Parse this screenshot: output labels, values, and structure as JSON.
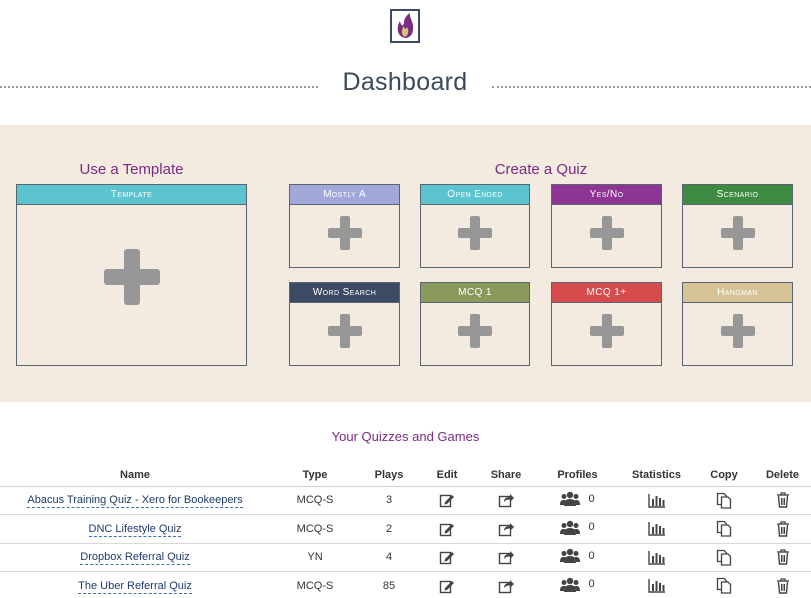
{
  "header": {
    "title": "Dashboard"
  },
  "template_section": {
    "title": "Use a Template",
    "card": {
      "label": "Template",
      "color": "#5cc4cf"
    }
  },
  "create_section": {
    "title": "Create a Quiz",
    "cards": [
      {
        "label": "Mostly A",
        "color": "#a1a8d9"
      },
      {
        "label": "Open Ended",
        "color": "#5cc4cf"
      },
      {
        "label": "Yes/No",
        "color": "#8c3592"
      },
      {
        "label": "Scenario",
        "color": "#3f8a43"
      },
      {
        "label": "Word Search",
        "color": "#3c4a63"
      },
      {
        "label": "MCQ 1",
        "color": "#8a9a5b"
      },
      {
        "label": "MCQ 1+",
        "color": "#d64b4b"
      },
      {
        "label": "Hangman",
        "color": "#d6c497"
      }
    ]
  },
  "quizzes": {
    "title": "Your Quizzes and Games",
    "columns": [
      "Name",
      "Type",
      "Plays",
      "Edit",
      "Share",
      "Profiles",
      "Statistics",
      "Copy",
      "Delete"
    ],
    "rows": [
      {
        "name": "Abacus Training Quiz - Xero for Bookeepers",
        "type": "MCQ-S",
        "plays": "3",
        "profiles": "0"
      },
      {
        "name": "DNC Lifestyle Quiz",
        "type": "MCQ-S",
        "plays": "2",
        "profiles": "0"
      },
      {
        "name": "Dropbox Referral Quiz",
        "type": "YN",
        "plays": "4",
        "profiles": "0"
      },
      {
        "name": "The Uber Referral Quiz",
        "type": "MCQ-S",
        "plays": "85",
        "profiles": "0"
      }
    ]
  }
}
